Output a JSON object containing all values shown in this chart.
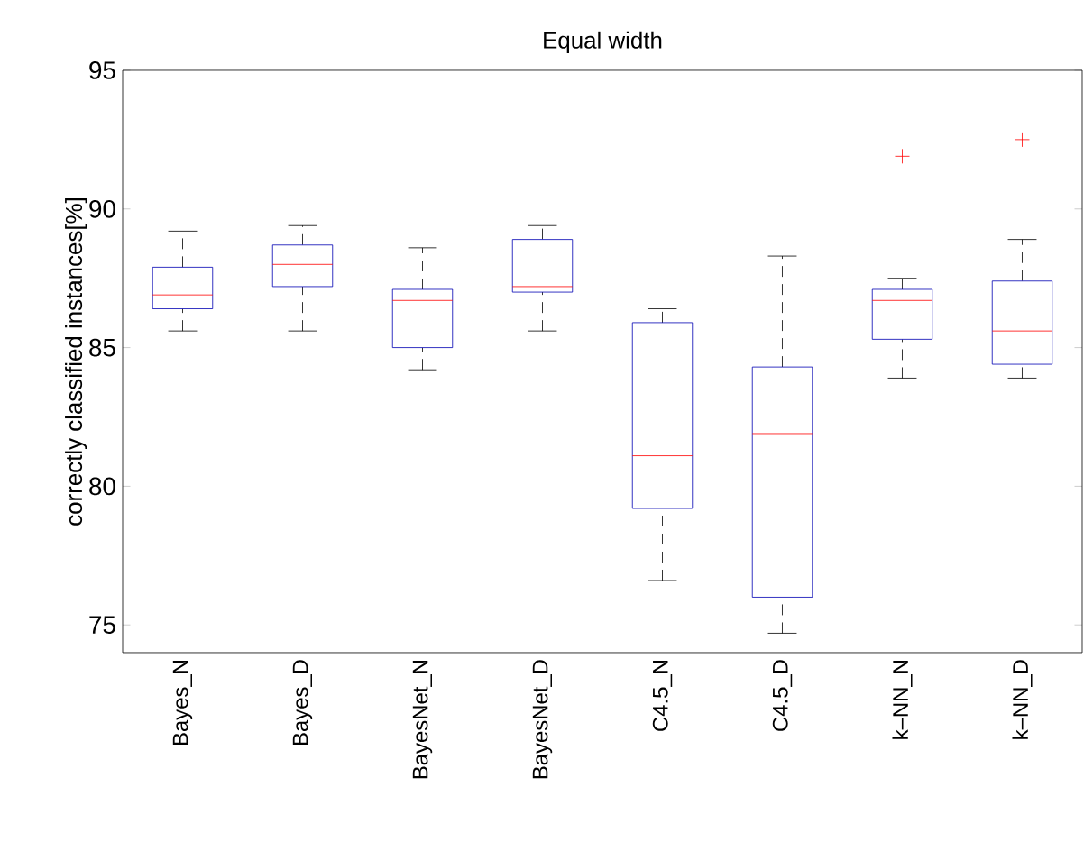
{
  "chart_data": {
    "type": "box",
    "title": "Equal width",
    "ylabel": "correctly classified instances[%]",
    "categories": [
      "Bayes_N",
      "Bayes_D",
      "BayesNet_N",
      "BayesNet_D",
      "C4.5_N",
      "C4.5_D",
      "k–NN_N",
      "k–NN_D"
    ],
    "boxes": [
      {
        "low": 85.6,
        "q1": 86.4,
        "median": 86.9,
        "q3": 87.9,
        "high": 89.2
      },
      {
        "low": 85.6,
        "q1": 87.2,
        "median": 88.0,
        "q3": 88.7,
        "high": 89.4
      },
      {
        "low": 84.2,
        "q1": 85.0,
        "median": 86.7,
        "q3": 87.1,
        "high": 88.6
      },
      {
        "low": 85.6,
        "q1": 87.0,
        "median": 87.2,
        "q3": 88.9,
        "high": 89.4
      },
      {
        "low": 76.6,
        "q1": 79.2,
        "median": 81.1,
        "q3": 85.9,
        "high": 86.4
      },
      {
        "low": 74.7,
        "q1": 76.0,
        "median": 81.9,
        "q3": 84.3,
        "high": 88.3
      },
      {
        "low": 83.9,
        "q1": 85.3,
        "median": 86.7,
        "q3": 87.1,
        "high": 87.5,
        "outliers": [
          91.9
        ]
      },
      {
        "low": 83.9,
        "q1": 84.4,
        "median": 85.6,
        "q3": 87.4,
        "high": 88.9,
        "outliers": [
          92.5
        ]
      }
    ],
    "ylim": [
      74,
      95
    ],
    "yticks": [
      75,
      80,
      85,
      90,
      95
    ]
  }
}
